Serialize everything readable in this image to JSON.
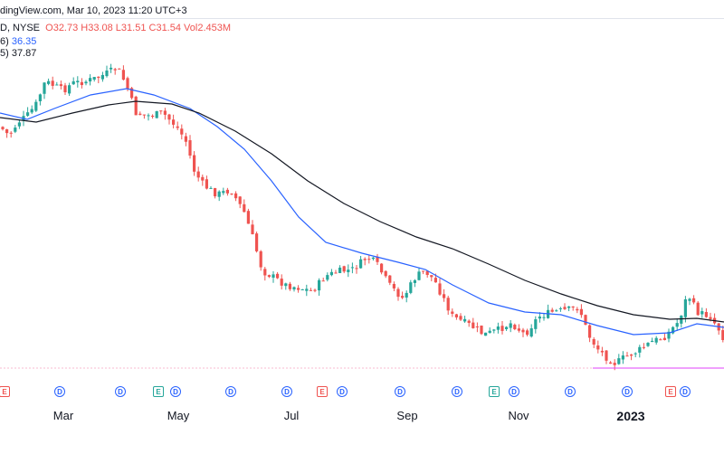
{
  "header": {
    "source": "dingView.com, Mar 10, 2023 11:20 UTC+3",
    "exchange": "D, NYSE",
    "ohlc": "O32.73 H33.08 L31.51 C31.54 Vol2.453M"
  },
  "indicators": [
    {
      "label": "6)",
      "value": "36.35",
      "color": "#2962ff"
    },
    {
      "label": " 5)",
      "value": "37.87",
      "color": "#131722"
    }
  ],
  "x_axis_labels": [
    "Mar",
    "May",
    "Jul",
    "Sep",
    "Nov",
    "2023"
  ],
  "events": [
    {
      "type": "E",
      "style": "red"
    },
    {
      "type": "D",
      "style": "blue"
    },
    {
      "type": "D",
      "style": "blue"
    },
    {
      "type": "E",
      "style": "green"
    },
    {
      "type": "D",
      "style": "blue"
    },
    {
      "type": "D",
      "style": "blue"
    },
    {
      "type": "D",
      "style": "blue"
    },
    {
      "type": "E",
      "style": "red"
    },
    {
      "type": "D",
      "style": "blue"
    },
    {
      "type": "D",
      "style": "blue"
    },
    {
      "type": "D",
      "style": "blue"
    },
    {
      "type": "E",
      "style": "green"
    },
    {
      "type": "D",
      "style": "blue"
    },
    {
      "type": "D",
      "style": "blue"
    },
    {
      "type": "D",
      "style": "blue"
    },
    {
      "type": "E",
      "style": "red"
    },
    {
      "type": "D",
      "style": "blue"
    }
  ],
  "colors": {
    "up": "#26a69a",
    "down": "#ef5350",
    "ma_fast": "#2962ff",
    "ma_slow": "#131722",
    "support_line": "#e040fb"
  }
}
